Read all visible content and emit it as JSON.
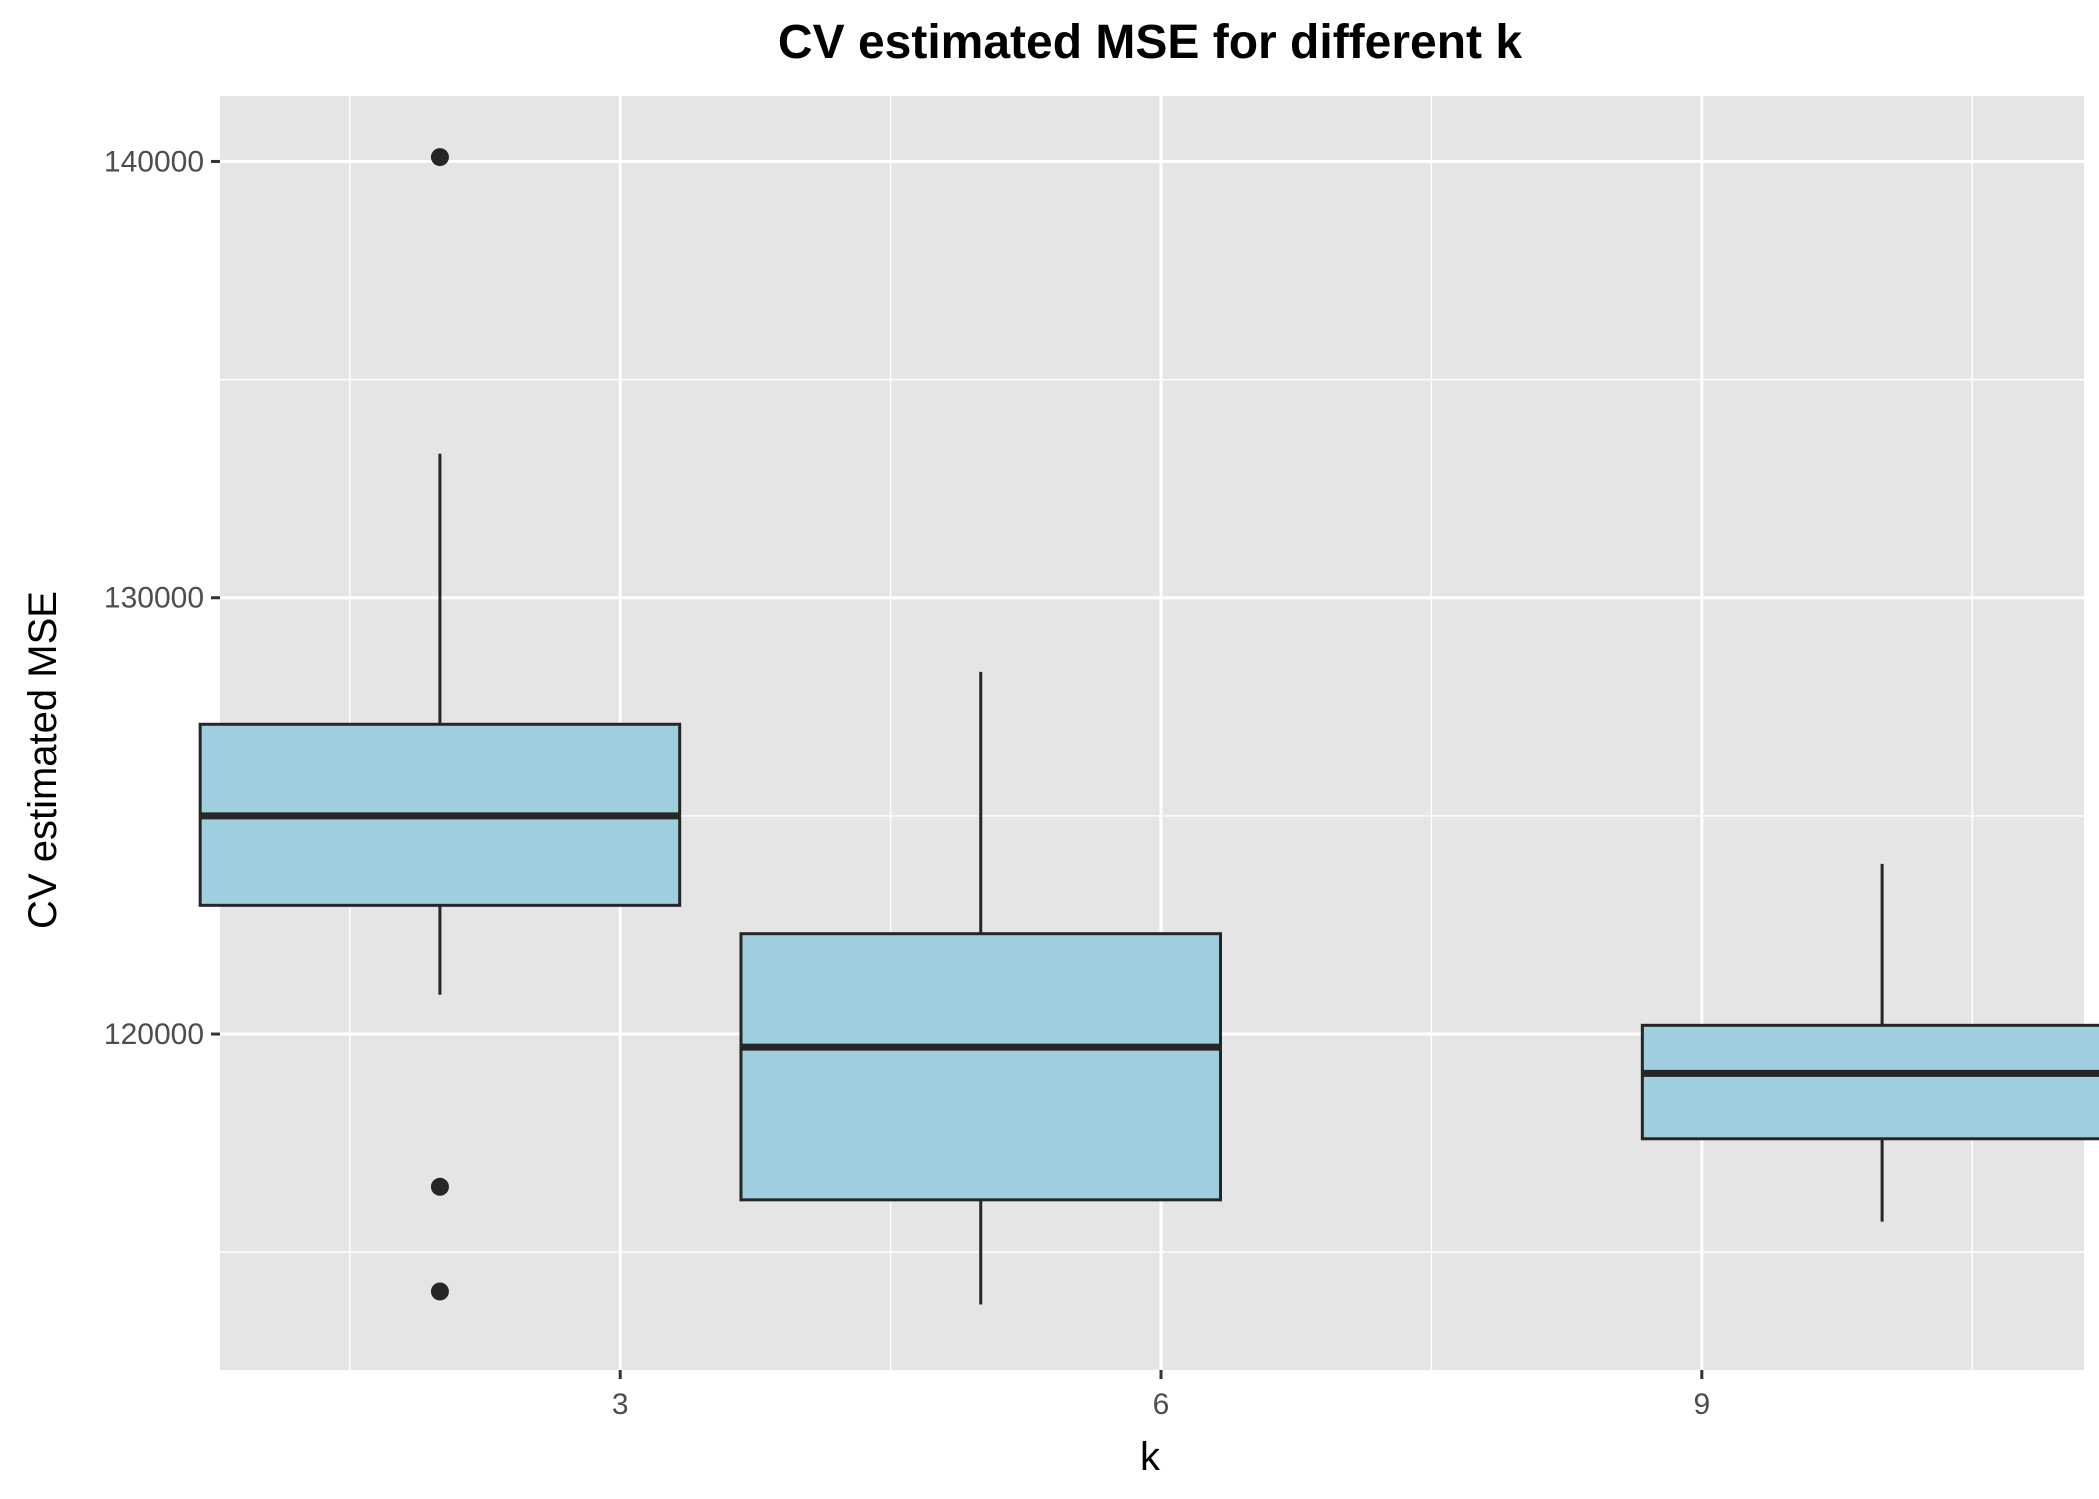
{
  "chart_data": {
    "type": "boxplot",
    "title": "CV estimated MSE for different k",
    "xlabel": "k",
    "ylabel": "CV estimated MSE",
    "x_ticks": [
      3,
      6,
      9
    ],
    "y_ticks": [
      120000,
      130000,
      140000
    ],
    "xlim": [
      0.78,
      11.12
    ],
    "ylim": [
      112300,
      141500
    ],
    "grid": true,
    "legend": "none",
    "colors": {
      "panel_background": "#e5e5e5",
      "grid": "#ffffff",
      "box_fill": "#9fcfdf",
      "box_outline": "#262626",
      "tick_label": "#4d4d4d"
    },
    "boxes": [
      {
        "k": 2,
        "whisker_low": 120900,
        "q1": 122950,
        "median": 125000,
        "q3": 127100,
        "whisker_high": 133300,
        "outliers": [
          140100,
          116500,
          114100
        ]
      },
      {
        "k": 5,
        "whisker_low": 113800,
        "q1": 116200,
        "median": 119700,
        "q3": 122300,
        "whisker_high": 128300,
        "outliers": []
      },
      {
        "k": 10,
        "whisker_low": 115700,
        "q1": 117600,
        "median": 119100,
        "q3": 120200,
        "whisker_high": 123900,
        "outliers": []
      }
    ]
  }
}
